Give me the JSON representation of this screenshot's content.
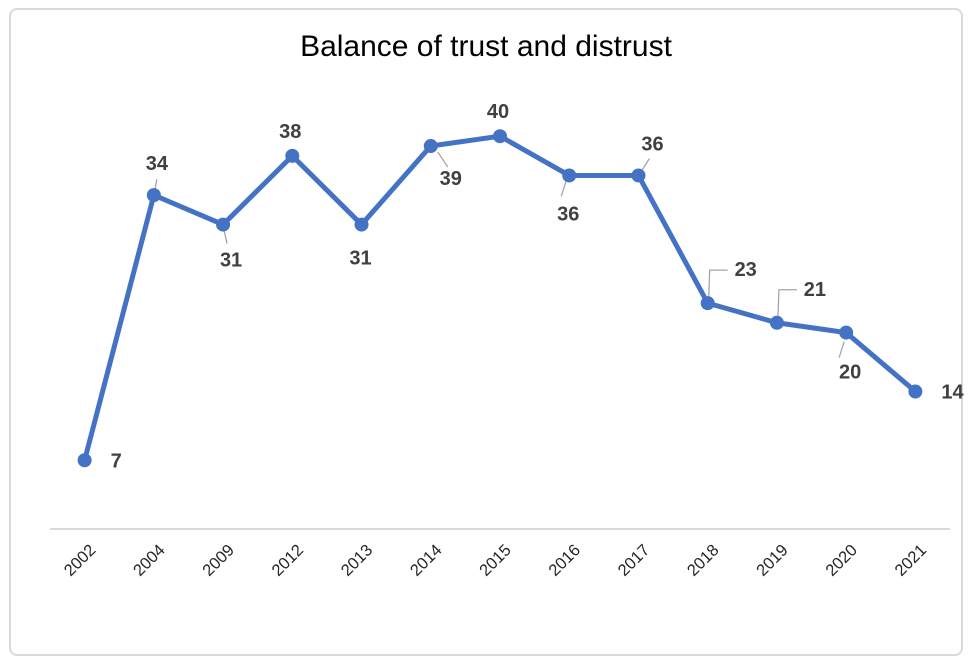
{
  "chart_data": {
    "type": "line",
    "title": "Balance of trust and distrust",
    "categories": [
      "2002",
      "2004",
      "2009",
      "2012",
      "2013",
      "2014",
      "2015",
      "2016",
      "2017",
      "2018",
      "2019",
      "2020",
      "2021"
    ],
    "values": [
      7,
      34,
      31,
      38,
      31,
      39,
      40,
      36,
      36,
      23,
      21,
      20,
      14
    ],
    "series": [
      {
        "name": "Balance of trust and distrust",
        "values": [
          7,
          34,
          31,
          38,
          31,
          39,
          40,
          36,
          36,
          23,
          21,
          20,
          14
        ]
      }
    ],
    "data_labels": [
      "7",
      "34",
      "31",
      "38",
      "31",
      "39",
      "40",
      "36",
      "36",
      "23",
      "21",
      "20",
      "14"
    ],
    "label_positions": [
      "right",
      "above-leader",
      "below-leader",
      "above",
      "below",
      "below-right-leader",
      "above",
      "below-left-leader",
      "above-right-leader",
      "callout",
      "callout",
      "below-leader-2",
      "right"
    ],
    "xlabel": "",
    "ylabel": "",
    "ylim": [
      0,
      45
    ],
    "grid": false,
    "legend": false,
    "x_axis_rotation_deg": -45,
    "colors": {
      "series": "#4472C4",
      "data_label": "#404040",
      "axis_label": "#262626",
      "axis_line": "#d9d9d9",
      "leader_line": "#a6a6a6",
      "title": "#000000",
      "frame_border": "#d9d9d9",
      "background": "#ffffff"
    }
  }
}
